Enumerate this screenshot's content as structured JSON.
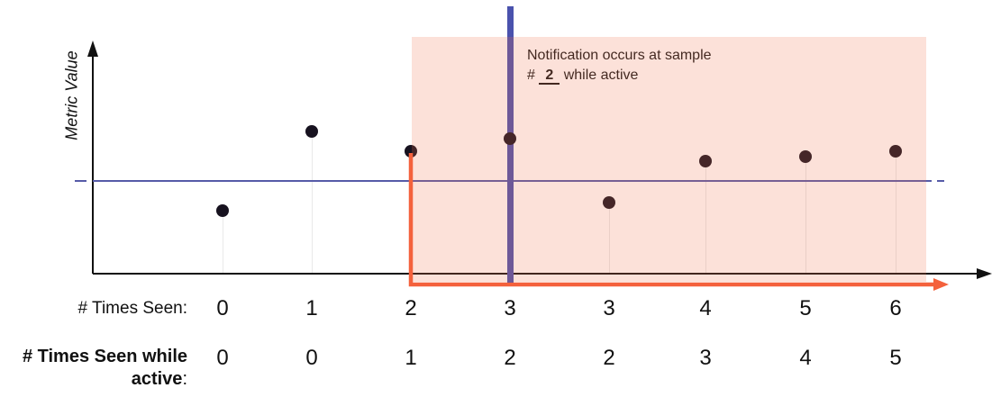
{
  "figure": {
    "y_axis_label": "Metric Value"
  },
  "annotation": {
    "prefix": "Notification occurs at sample # ",
    "value": "2",
    "suffix": " while active"
  },
  "rows": {
    "times_seen_label": "# Times Seen:",
    "times_seen_values": [
      "0",
      "1",
      "2",
      "3",
      "3",
      "4",
      "5",
      "6"
    ],
    "times_seen_active_label_line1": "# Times Seen while",
    "times_seen_active_label_line2": "active",
    "times_seen_active_colon": ":",
    "times_seen_active_values": [
      "0",
      "0",
      "1",
      "2",
      "2",
      "3",
      "4",
      "5"
    ]
  },
  "colors": {
    "dot": "#17121f",
    "axis": "#111111",
    "threshold_line": "#565ba8",
    "notification_line": "#4a52ad",
    "active_region_fill": "rgba(240,114,75,0.21)",
    "active_arrow": "#f4613c",
    "stem": "#e9e9e9"
  },
  "chart_data": {
    "type": "scatter",
    "title": "",
    "xlabel": "",
    "ylabel": "Metric Value",
    "x_index": [
      0,
      1,
      2,
      3,
      4,
      5,
      6,
      7
    ],
    "values_arbitrary_units": [
      70,
      158,
      136,
      150,
      79,
      125,
      130,
      136
    ],
    "threshold_value": 103,
    "axis_tick_labels": "none (y axis unlabeled, values estimated in arbitrary units)",
    "active_region": {
      "start_index": 2,
      "end_index": 7
    },
    "notification_index": 3,
    "series": [
      {
        "name": "# Times Seen",
        "values": [
          0,
          1,
          2,
          3,
          3,
          4,
          5,
          6
        ]
      },
      {
        "name": "# Times Seen while active",
        "values": [
          0,
          0,
          1,
          2,
          2,
          3,
          4,
          5
        ]
      }
    ],
    "legend": "none",
    "grid": false
  }
}
